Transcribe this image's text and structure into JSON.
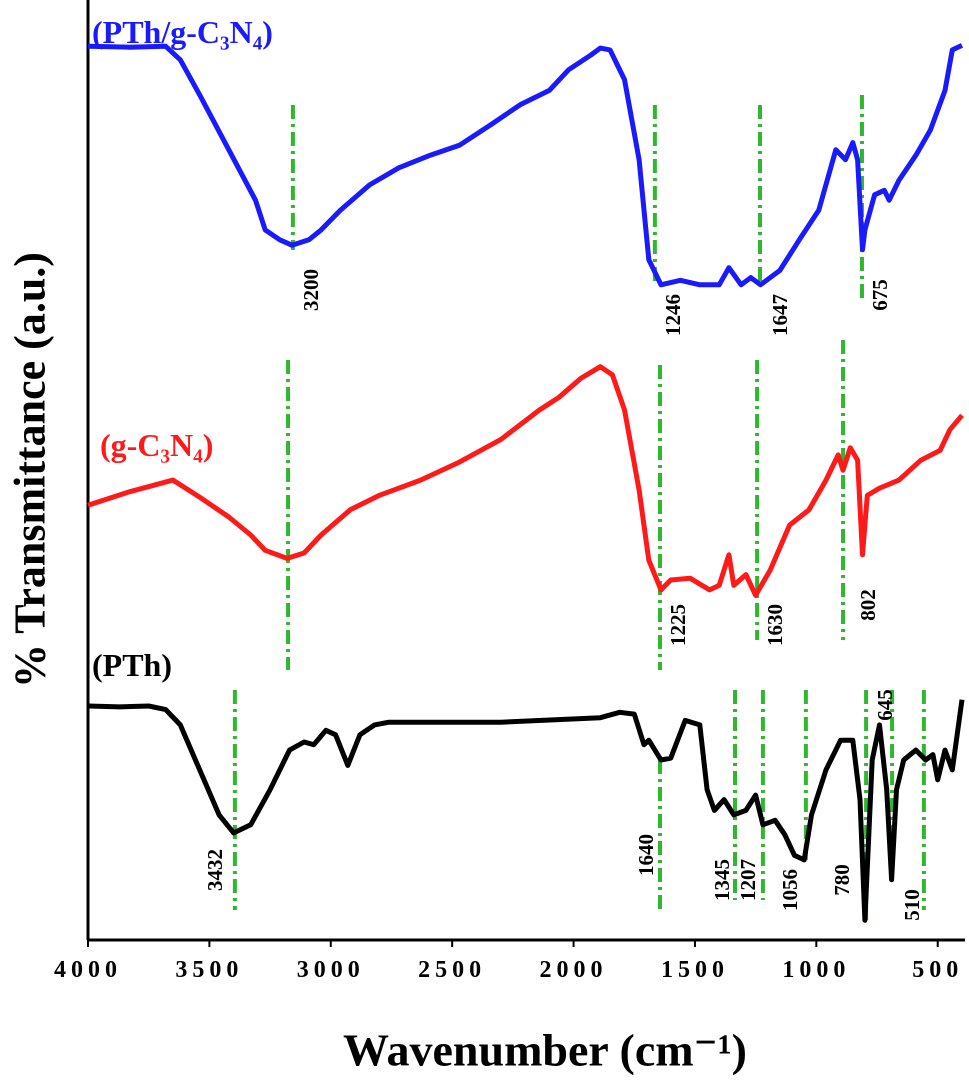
{
  "chart_data": {
    "type": "line",
    "xlabel": "Wavenumber (cm⁻¹)",
    "ylabel": "% Transmittance (a.u.)",
    "xlim": [
      4000,
      400
    ],
    "ylim": [
      0,
      100
    ],
    "xticks": [
      4000,
      3500,
      3000,
      2500,
      2000,
      1500,
      1000,
      500
    ],
    "series": [
      {
        "name": "(PTh/g-C₃N₄)",
        "color": "#1a1aff",
        "x": [
          4000,
          3830,
          3680,
          3620,
          3540,
          3420,
          3310,
          3270,
          3210,
          3160,
          3090,
          3040,
          2960,
          2840,
          2720,
          2590,
          2470,
          2340,
          2220,
          2100,
          2020,
          1930,
          1890,
          1850,
          1790,
          1730,
          1690,
          1640,
          1560,
          1480,
          1400,
          1360,
          1310,
          1270,
          1230,
          1150,
          1070,
          990,
          920,
          880,
          850,
          830,
          810,
          800,
          760,
          720,
          700,
          660,
          590,
          530,
          470,
          440,
          400
        ],
        "values": [
          99.3,
          99.2,
          99.3,
          97.8,
          93.9,
          87.8,
          82.2,
          78.9,
          77.8,
          77.2,
          77.8,
          78.9,
          81.1,
          83.9,
          85.8,
          87.2,
          88.3,
          90.6,
          92.8,
          94.4,
          96.7,
          98.3,
          99.1,
          98.9,
          95.6,
          86.7,
          75.6,
          72.8,
          73.3,
          72.8,
          72.8,
          74.7,
          72.8,
          73.6,
          72.8,
          74.4,
          77.8,
          81.1,
          87.8,
          86.7,
          88.6,
          86.7,
          76.7,
          78.9,
          82.8,
          83.3,
          82.2,
          84.4,
          87.2,
          90,
          94.4,
          98.9,
          99.4
        ]
      },
      {
        "name": "(g-C₃N₄)",
        "color": "#ff1a1a",
        "x": [
          4000,
          3830,
          3650,
          3540,
          3420,
          3330,
          3270,
          3180,
          3110,
          3040,
          2920,
          2800,
          2630,
          2470,
          2300,
          2140,
          2060,
          1970,
          1890,
          1840,
          1790,
          1730,
          1690,
          1640,
          1600,
          1520,
          1440,
          1400,
          1360,
          1340,
          1290,
          1250,
          1190,
          1110,
          1030,
          960,
          910,
          890,
          860,
          830,
          810,
          790,
          740,
          660,
          570,
          490,
          450,
          400
        ],
        "values": [
          48.3,
          49.8,
          51.1,
          49.2,
          47,
          45,
          43.3,
          42.4,
          43,
          45,
          47.8,
          49.4,
          51.1,
          53.1,
          55.6,
          58.9,
          60.3,
          62.4,
          63.7,
          62.8,
          58.9,
          50,
          42.2,
          38.9,
          40,
          40.2,
          38.9,
          39.4,
          42.8,
          39.4,
          40.6,
          38.3,
          41.1,
          46.1,
          47.8,
          51.1,
          53.9,
          52.2,
          54.7,
          53.3,
          42.8,
          49.4,
          50.2,
          51.1,
          53.3,
          54.4,
          56.7,
          58.3
        ]
      },
      {
        "name": "(PTh)",
        "color": "#000000",
        "x": [
          4000,
          3870,
          3750,
          3680,
          3620,
          3540,
          3460,
          3400,
          3330,
          3250,
          3170,
          3110,
          3070,
          3020,
          2980,
          2930,
          2880,
          2820,
          2760,
          2300,
          1890,
          1810,
          1750,
          1710,
          1690,
          1640,
          1600,
          1540,
          1480,
          1450,
          1420,
          1380,
          1340,
          1290,
          1250,
          1220,
          1170,
          1130,
          1090,
          1050,
          1020,
          960,
          900,
          850,
          820,
          800,
          770,
          740,
          710,
          690,
          670,
          640,
          590,
          550,
          520,
          500,
          470,
          440,
          400
        ],
        "values": [
          26,
          25.9,
          26,
          25.6,
          23.9,
          18.9,
          13.9,
          11.9,
          12.8,
          16.7,
          21.1,
          22,
          21.7,
          23.3,
          22.8,
          19.4,
          22.8,
          23.9,
          24.2,
          24.2,
          24.7,
          25.3,
          25.1,
          21.7,
          22.2,
          20,
          20.2,
          24.4,
          23.9,
          16.7,
          14.4,
          15.6,
          13.9,
          14.4,
          16.1,
          12.8,
          13.3,
          11.7,
          9.4,
          8.9,
          13.9,
          18.9,
          22.2,
          22.2,
          15.6,
          2.2,
          20,
          23.9,
          16.7,
          6.7,
          16.7,
          20,
          21.1,
          20,
          20.6,
          17.8,
          21.1,
          18.9,
          26.7
        ]
      }
    ],
    "annotations": [
      {
        "text": "3200",
        "x": 3156
      },
      {
        "text": "1246",
        "x": 1665
      },
      {
        "text": "1647",
        "x": 1232
      },
      {
        "text": "675",
        "x": 812
      },
      {
        "x": 3176
      },
      {
        "text": "1225",
        "x": 1644
      },
      {
        "text": "1630",
        "x": 1244
      },
      {
        "text": "802",
        "x": 890
      },
      {
        "text": "3432",
        "x": 3395
      },
      {
        "text": "1640",
        "x": 1644
      },
      {
        "text": "1345",
        "x": 1335
      },
      {
        "text": "1207",
        "x": 1220
      },
      {
        "text": "1056",
        "x": 1043
      },
      {
        "text": "780",
        "x": 795
      },
      {
        "text": "645",
        "x": 688
      },
      {
        "text": "510",
        "x": 557
      }
    ]
  }
}
